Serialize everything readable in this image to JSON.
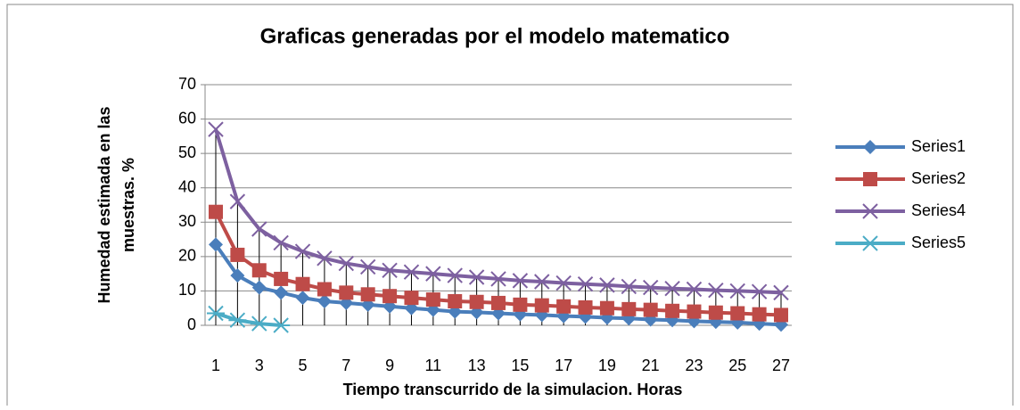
{
  "chart_data": {
    "type": "line",
    "title": "Graficas generadas por el modelo matematico",
    "xlabel": "Tiempo transcurrido de la simulacion. Horas",
    "ylabel": [
      "Humedad estimada en las",
      "muestras. %"
    ],
    "categories": [
      1,
      null,
      3,
      null,
      5,
      null,
      7,
      null,
      9,
      null,
      11,
      null,
      13,
      null,
      15,
      null,
      17,
      null,
      19,
      null,
      21,
      null,
      23,
      null,
      25,
      null,
      27
    ],
    "series": [
      {
        "name": "Series1",
        "color": "#4a7ebb",
        "marker": "diamond",
        "values": [
          23.5,
          14.5,
          11,
          9.5,
          8,
          7,
          6.5,
          6,
          5.5,
          5,
          4.5,
          4,
          3.8,
          3.5,
          3.2,
          3,
          2.7,
          2.5,
          2.2,
          2,
          1.7,
          1.5,
          1.2,
          1,
          0.8,
          0.5,
          0.2
        ]
      },
      {
        "name": "Series2",
        "color": "#be4b48",
        "marker": "square",
        "values": [
          33,
          20.5,
          16,
          13.5,
          12,
          10.5,
          9.5,
          9,
          8.5,
          8,
          7.5,
          7,
          6.8,
          6.5,
          6,
          5.8,
          5.5,
          5.2,
          5,
          4.7,
          4.5,
          4.2,
          4,
          3.7,
          3.5,
          3.2,
          3
        ]
      },
      {
        "name": "Series4",
        "color": "#7d60a0",
        "marker": "x",
        "values": [
          57,
          36,
          28,
          24,
          21.5,
          19.5,
          18,
          17,
          16,
          15.5,
          15,
          14.5,
          14,
          13.5,
          13,
          12.7,
          12.3,
          12,
          11.7,
          11.3,
          11,
          10.7,
          10.5,
          10.2,
          10,
          9.8,
          9.5
        ]
      },
      {
        "name": "Series5",
        "color": "#4bacc6",
        "marker": "star",
        "values": [
          3.5,
          1.5,
          0.5,
          0,
          null,
          null,
          null,
          null,
          null,
          null,
          null,
          null,
          null,
          null,
          null,
          null,
          null,
          null,
          null,
          null,
          null,
          null,
          null,
          null,
          null,
          null,
          null
        ]
      }
    ],
    "ylim": [
      0,
      70
    ],
    "yticks": [
      0,
      10,
      20,
      30,
      40,
      50,
      60,
      70
    ],
    "grid": true,
    "legend": "right",
    "drop_lines": true
  }
}
